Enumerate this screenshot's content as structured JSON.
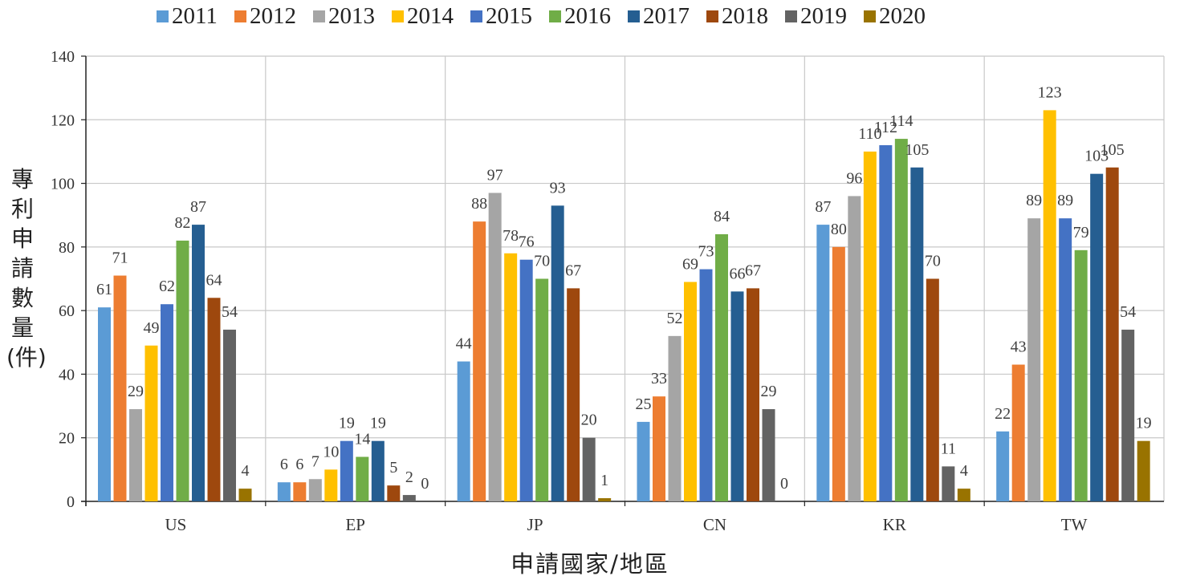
{
  "chart_data": {
    "type": "bar",
    "categories": [
      "US",
      "EP",
      "JP",
      "CN",
      "KR",
      "TW"
    ],
    "series": [
      {
        "name": "2011",
        "color": "#5B9BD5",
        "values": [
          61,
          6,
          44,
          25,
          87,
          22
        ]
      },
      {
        "name": "2012",
        "color": "#ED7D31",
        "values": [
          71,
          6,
          88,
          33,
          80,
          43
        ]
      },
      {
        "name": "2013",
        "color": "#A5A5A5",
        "values": [
          29,
          7,
          97,
          52,
          96,
          89
        ]
      },
      {
        "name": "2014",
        "color": "#FFC000",
        "values": [
          49,
          10,
          78,
          69,
          110,
          123
        ]
      },
      {
        "name": "2015",
        "color": "#4472C4",
        "values": [
          62,
          19,
          76,
          73,
          112,
          89
        ]
      },
      {
        "name": "2016",
        "color": "#70AD47",
        "values": [
          82,
          14,
          70,
          84,
          114,
          79
        ]
      },
      {
        "name": "2017",
        "color": "#255E91",
        "values": [
          87,
          19,
          93,
          66,
          105,
          103
        ]
      },
      {
        "name": "2018",
        "color": "#9E480E",
        "values": [
          64,
          5,
          67,
          67,
          70,
          105
        ]
      },
      {
        "name": "2019",
        "color": "#636363",
        "values": [
          54,
          2,
          20,
          29,
          11,
          54
        ]
      },
      {
        "name": "2020",
        "color": "#997300",
        "values": [
          4,
          0,
          1,
          0,
          4,
          19
        ]
      }
    ],
    "xlabel": "申請國家/地區",
    "ylabel": "專利申請數量(件)",
    "ylim": [
      0,
      140
    ],
    "yticks": [
      0,
      20,
      40,
      60,
      80,
      100,
      120,
      140
    ],
    "grid": true,
    "legend_position": "top"
  }
}
